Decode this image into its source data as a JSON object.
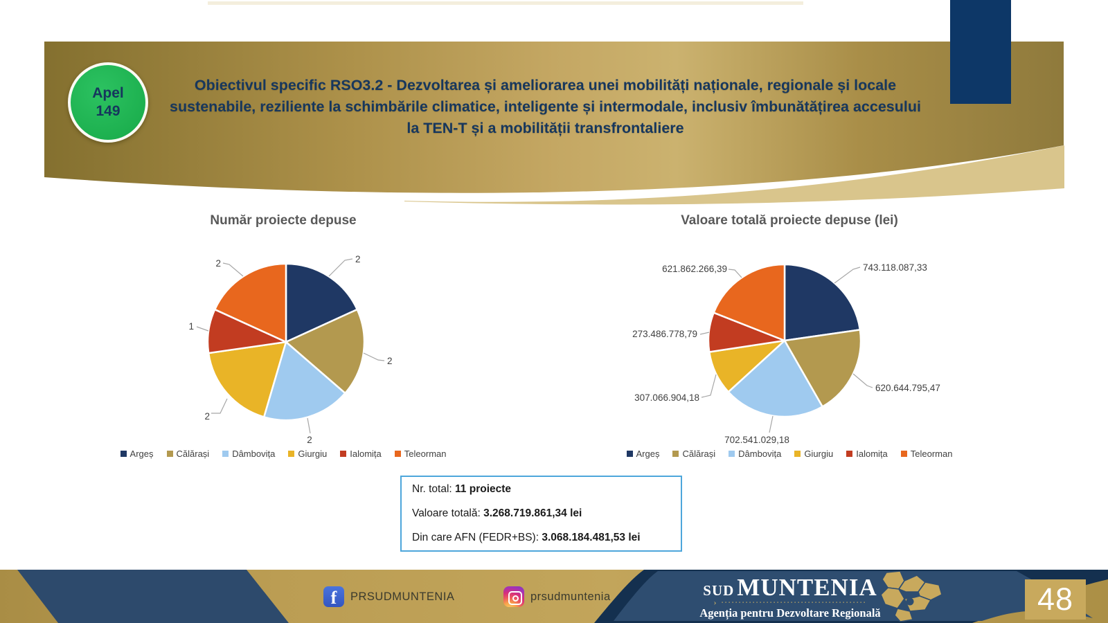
{
  "header": {
    "badge_line1": "Apel",
    "badge_line2": "149",
    "title": "Obiectivul specific RSO3.2 - Dezvoltarea și ameliorarea unei mobilități naționale, regionale și locale sustenabile, reziliente la schimbările climatice, inteligente și intermodale, inclusiv îmbunătățirea accesului la TEN-T și a mobilității transfrontaliere"
  },
  "chart_data": [
    {
      "type": "pie",
      "title": "Număr proiecte depuse",
      "categories": [
        "Argeș",
        "Călărași",
        "Dâmbovița",
        "Giurgiu",
        "Ialomița",
        "Teleorman"
      ],
      "values": [
        2,
        2,
        2,
        2,
        1,
        2
      ],
      "labels": [
        "2",
        "2",
        "2",
        "2",
        "1",
        "2"
      ],
      "colors": [
        "#1f3864",
        "#b3994f",
        "#9fcaef",
        "#e9b427",
        "#c23c21",
        "#e8671e"
      ],
      "legend_position": "bottom",
      "start_angle_deg": 0,
      "direction": "clockwise"
    },
    {
      "type": "pie",
      "title": "Valoare totală proiecte depuse (lei)",
      "categories": [
        "Argeș",
        "Călărași",
        "Dâmbovița",
        "Giurgiu",
        "Ialomița",
        "Teleorman"
      ],
      "values": [
        743118087.33,
        620644795.47,
        702541029.18,
        307066904.18,
        273486778.79,
        621862266.39
      ],
      "labels": [
        "743.118.087,33",
        "620.644.795,47",
        "702.541.029,18",
        "307.066.904,18",
        "273.486.778,79",
        "621.862.266,39"
      ],
      "colors": [
        "#1f3864",
        "#b3994f",
        "#9fcaef",
        "#e9b427",
        "#c23c21",
        "#e8671e"
      ],
      "legend_position": "bottom",
      "start_angle_deg": 0,
      "direction": "clockwise"
    }
  ],
  "summary": {
    "rows": [
      {
        "label": "Nr. total: ",
        "value": "11 proiecte"
      },
      {
        "label": "Valoare totală: ",
        "value": "3.268.719.861,34 lei"
      },
      {
        "label": "Din care AFN (FEDR+BS): ",
        "value": "3.068.184.481,53 lei"
      }
    ]
  },
  "footer": {
    "facebook_handle": "PRSUDMUNTENIA",
    "instagram_handle": "prsudmuntenia",
    "logo_word1": "SUD",
    "logo_word2": "MUNTENIA",
    "logo_dashes": "› ∙∙∙∙∙∙∙∙∙∙∙∙∙∙∙∙∙∙∙∙∙∙∙∙∙∙∙∙∙∙∙∙∙∙∙∙∙∙∙∙∙∙",
    "logo_subtitle": "Agenția pentru Dezvoltare Regională",
    "page_number": "48"
  },
  "theme_colors": {
    "banner_gold": "#c4a763",
    "navy": "#17375d",
    "footer_navy": "#2d4a6c",
    "badge_green": "#1db954",
    "summary_border": "#4da6db"
  }
}
